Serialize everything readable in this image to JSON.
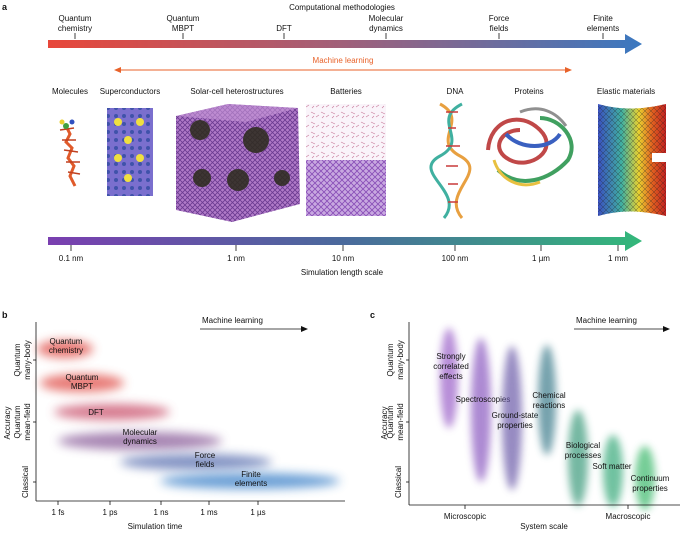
{
  "panel_a": {
    "letter": "a",
    "top_axis_title": "Computational methodologies",
    "methods": [
      {
        "l1": "Quantum",
        "l2": "chemistry"
      },
      {
        "l1": "Quantum",
        "l2": "MBPT"
      },
      {
        "l1": "DFT",
        "l2": ""
      },
      {
        "l1": "Molecular",
        "l2": "dynamics"
      },
      {
        "l1": "Force",
        "l2": "fields"
      },
      {
        "l1": "Finite",
        "l2": "elements"
      }
    ],
    "machine_learning": "Machine learning",
    "systems": [
      "Molecules",
      "Superconductors",
      "Solar-cell heterostructures",
      "Batteries",
      "DNA",
      "Proteins",
      "Elastic materials"
    ],
    "length_ticks": [
      "0.1 nm",
      "1 nm",
      "10 nm",
      "100 nm",
      "1 µm",
      "1 mm"
    ],
    "length_axis_title": "Simulation length scale",
    "colors": {
      "top_arrow_start": "#e8473a",
      "top_arrow_end": "#3a78c0",
      "ml_arrow": "#e8622a",
      "bottom_arrow_start": "#7a3fb0",
      "bottom_arrow_end": "#33b87a"
    }
  },
  "panel_b": {
    "letter": "b",
    "ml_label": "Machine learning",
    "y_title": "Accuracy",
    "y_groups": [
      {
        "l1": "Quantum",
        "l2": "many-body"
      },
      {
        "l1": "Quantum",
        "l2": "mean-field"
      },
      {
        "l1": "Classical",
        "l2": ""
      }
    ],
    "x_ticks": [
      "1 fs",
      "1 ps",
      "1 ns",
      "1 ms",
      "1 µs"
    ],
    "x_title": "Simulation time",
    "blobs": [
      {
        "l1": "Quantum",
        "l2": "chemistry",
        "color": "#e0504a"
      },
      {
        "l1": "Quantum",
        "l2": "MBPT",
        "color": "#e0504a"
      },
      {
        "l1": "DFT",
        "l2": "",
        "color": "#c94f6a"
      },
      {
        "l1": "Molecular",
        "l2": "dynamics",
        "color": "#8a5d9a"
      },
      {
        "l1": "Force",
        "l2": "fields",
        "color": "#5a70b0"
      },
      {
        "l1": "Finite",
        "l2": "elements",
        "color": "#3a80c8"
      }
    ]
  },
  "panel_c": {
    "letter": "c",
    "ml_label": "Machine learning",
    "y_title": "Accuracy",
    "y_groups": [
      {
        "l1": "Quantum",
        "l2": "many-body"
      },
      {
        "l1": "Quantum",
        "l2": "mean-field"
      },
      {
        "l1": "Classical",
        "l2": ""
      }
    ],
    "x_ticks": [
      "Microscopic",
      "Macroscopic"
    ],
    "x_title": "System scale",
    "blobs": [
      {
        "lines": [
          "Strongly",
          "correlated",
          "effects"
        ],
        "color": "#9a5ec8"
      },
      {
        "lines": [
          "Spectroscopies"
        ],
        "color": "#8a58c0"
      },
      {
        "lines": [
          "Ground-state",
          "properties"
        ],
        "color": "#6a5aa8"
      },
      {
        "lines": [
          "Chemical",
          "reactions"
        ],
        "color": "#3a7a8a"
      },
      {
        "lines": [
          "Biological",
          "processes"
        ],
        "color": "#3a9a7a"
      },
      {
        "lines": [
          "Soft matter"
        ],
        "color": "#36a878"
      },
      {
        "lines": [
          "Continuum",
          "properties"
        ],
        "color": "#3ab86a"
      }
    ]
  }
}
